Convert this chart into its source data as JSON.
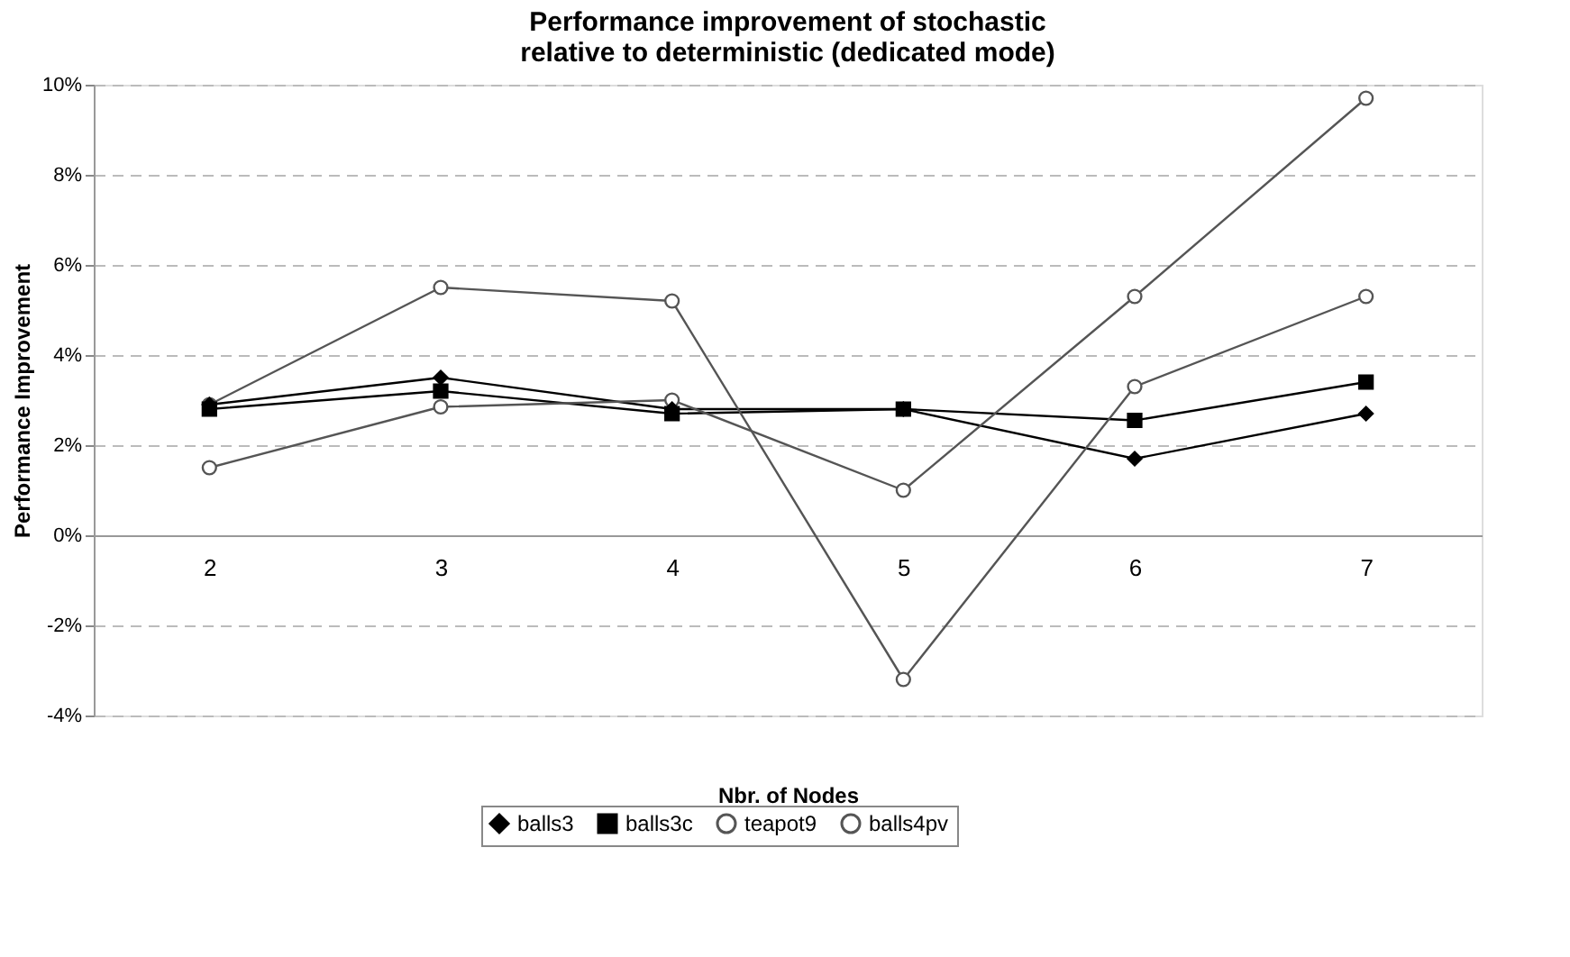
{
  "chart_data": {
    "type": "line",
    "title": "Performance improvement of stochastic relative to deterministic (dedicated mode)",
    "xlabel": "Nbr. of Nodes",
    "ylabel": "Performance Improvement",
    "categories": [
      "2",
      "3",
      "4",
      "5",
      "6",
      "7"
    ],
    "series": [
      {
        "name": "balls3",
        "color": "#000000",
        "marker": "diamond",
        "values": [
          2.9,
          3.5,
          2.8,
          2.8,
          1.7,
          2.7
        ]
      },
      {
        "name": "balls3c",
        "color": "#000000",
        "marker": "square",
        "values": [
          2.8,
          3.2,
          2.7,
          2.8,
          2.55,
          3.4
        ]
      },
      {
        "name": "teapot9",
        "color": "#555555",
        "marker": "circle",
        "values": [
          1.5,
          2.85,
          3.0,
          1.0,
          5.3,
          9.7
        ]
      },
      {
        "name": "balls4pv",
        "color": "#555555",
        "marker": "circle",
        "values": [
          2.9,
          5.5,
          5.2,
          -3.2,
          3.3,
          5.3
        ]
      }
    ],
    "ylim": [
      -4,
      10
    ],
    "yticks": [
      {
        "value": -4,
        "label": "-4%"
      },
      {
        "value": -2,
        "label": "-2%"
      },
      {
        "value": 0,
        "label": "0%"
      },
      {
        "value": 2,
        "label": "2%"
      },
      {
        "value": 4,
        "label": "4%"
      },
      {
        "value": 6,
        "label": "6%"
      },
      {
        "value": 8,
        "label": "8%"
      },
      {
        "value": 10,
        "label": "10%"
      }
    ],
    "grid": "y",
    "legend": "bottom",
    "line_style": "solid",
    "marker": "circle"
  }
}
